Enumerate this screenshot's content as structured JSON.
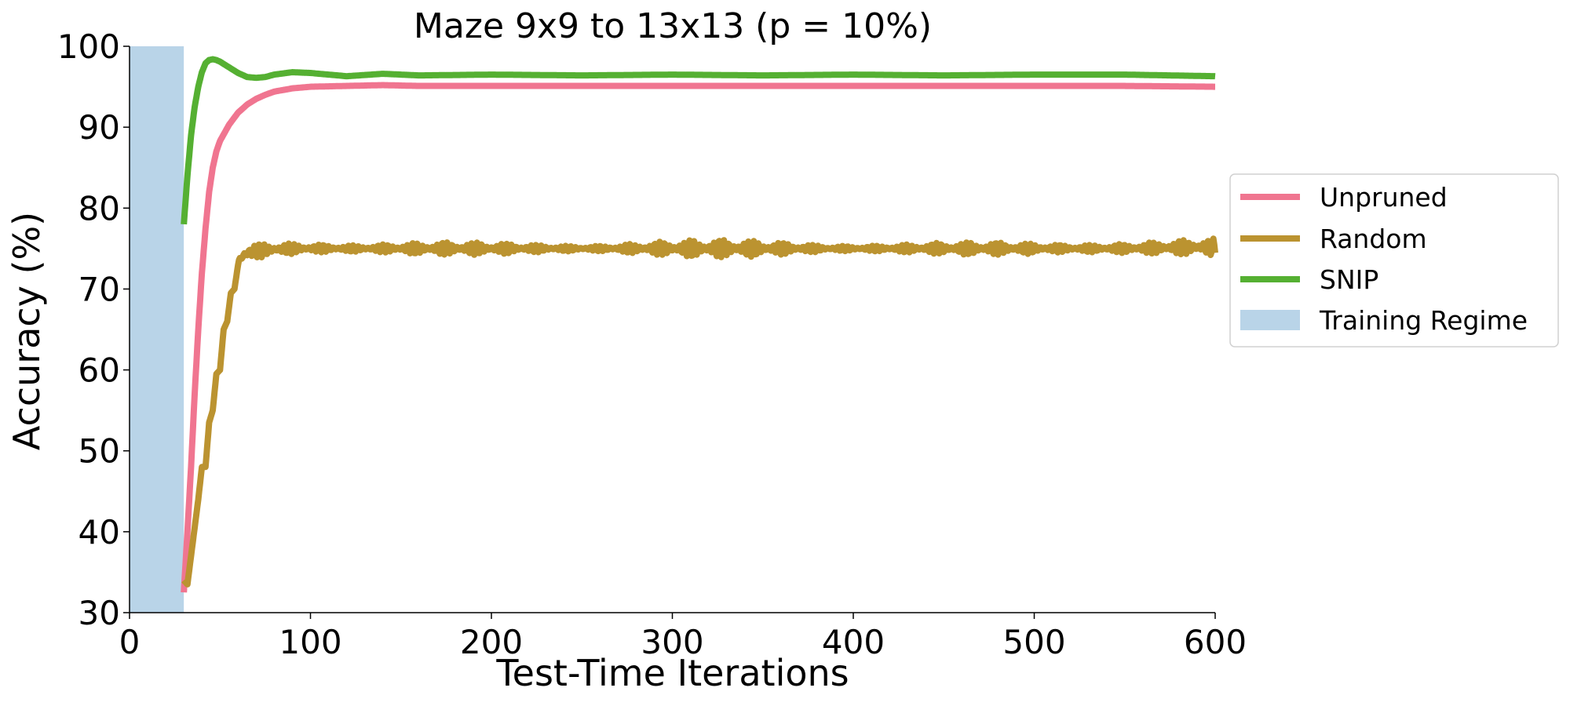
{
  "chart_data": {
    "type": "line",
    "title": "Maze 9x9 to 13x13 (p = 10%)",
    "xlabel": "Test-Time Iterations",
    "ylabel": "Accuracy (%)",
    "xlim": [
      0,
      600
    ],
    "ylim": [
      30,
      100
    ],
    "xticks": [
      "0",
      "100",
      "200",
      "300",
      "400",
      "500",
      "600"
    ],
    "yticks": [
      "30",
      "40",
      "50",
      "60",
      "70",
      "80",
      "90",
      "100"
    ],
    "grid": false,
    "legend_position": "right",
    "training_regime": {
      "name": "Training Regime",
      "x_start": 0,
      "x_end": 30,
      "color": "#b9d4e8"
    },
    "series": [
      {
        "name": "Unpruned",
        "color": "#f07590",
        "x": [
          30,
          32,
          34,
          36,
          38,
          40,
          42,
          44,
          46,
          48,
          50,
          55,
          60,
          65,
          70,
          75,
          80,
          90,
          100,
          120,
          140,
          160,
          200,
          250,
          300,
          350,
          400,
          450,
          500,
          550,
          600
        ],
        "y": [
          32.5,
          40,
          48,
          57,
          65,
          72,
          77.5,
          82,
          85,
          87,
          88.3,
          90.3,
          91.8,
          92.8,
          93.5,
          94,
          94.4,
          94.8,
          95,
          95.1,
          95.2,
          95.1,
          95.1,
          95.1,
          95.1,
          95.1,
          95.1,
          95.1,
          95.1,
          95.1,
          95
        ]
      },
      {
        "name": "Random",
        "color": "#bb9330",
        "x": [
          30,
          32,
          34,
          36,
          38,
          40,
          42,
          44,
          46,
          48,
          50,
          52,
          54,
          56,
          58,
          60,
          62,
          64,
          66,
          68,
          70,
          75,
          80,
          90,
          100,
          120,
          140,
          160,
          200,
          250,
          300,
          350,
          400,
          450,
          500,
          550,
          600
        ],
        "y": [
          34,
          33.5,
          37,
          40.5,
          44,
          48,
          48,
          53.5,
          55,
          59.5,
          60,
          65,
          66,
          69.5,
          70,
          73,
          74,
          74.3,
          74.5,
          74.6,
          74.7,
          74.8,
          74.9,
          75,
          75,
          75,
          75,
          75,
          75,
          75,
          75,
          75,
          75,
          75,
          75,
          75,
          75.2
        ],
        "noise_amplitude": 0.8
      },
      {
        "name": "SNIP",
        "color": "#55b032",
        "x": [
          30,
          32,
          34,
          36,
          38,
          40,
          42,
          44,
          46,
          48,
          50,
          55,
          60,
          65,
          70,
          75,
          80,
          90,
          100,
          120,
          140,
          160,
          200,
          250,
          300,
          350,
          400,
          450,
          500,
          550,
          600
        ],
        "y": [
          78,
          84,
          89,
          92.5,
          95,
          96.8,
          97.9,
          98.3,
          98.4,
          98.3,
          98.1,
          97.4,
          96.7,
          96.2,
          96.1,
          96.2,
          96.5,
          96.8,
          96.7,
          96.3,
          96.6,
          96.4,
          96.5,
          96.4,
          96.5,
          96.4,
          96.5,
          96.4,
          96.5,
          96.5,
          96.3
        ]
      }
    ]
  }
}
